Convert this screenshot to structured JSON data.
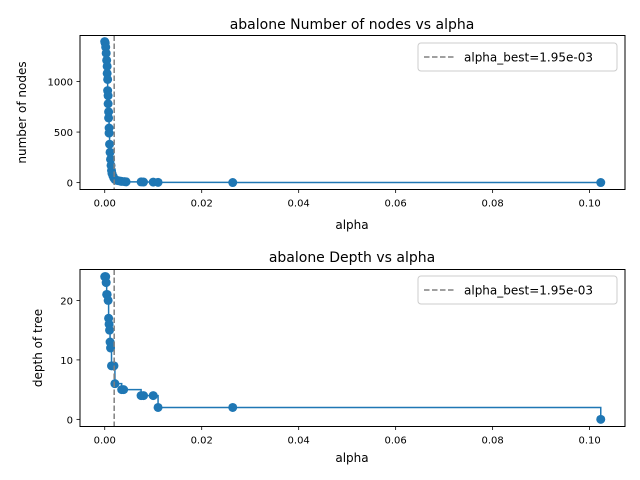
{
  "chart_data": [
    {
      "type": "line",
      "title": "abalone Number of nodes vs alpha",
      "xlabel": "alpha",
      "ylabel": "number of nodes",
      "xlim": [
        -0.0051,
        0.1073
      ],
      "ylim": [
        -68,
        1455
      ],
      "xticks": [
        0.0,
        0.02,
        0.04,
        0.06,
        0.08,
        0.1
      ],
      "xtick_labels": [
        "0.00",
        "0.02",
        "0.04",
        "0.06",
        "0.08",
        "0.10"
      ],
      "yticks": [
        0,
        500,
        1000
      ],
      "ytick_labels": [
        "0",
        "500",
        "1000"
      ],
      "drawstyle": "steps-post",
      "marker": "circle",
      "series": [
        {
          "color": "#1f77b4",
          "x": [
            0.0,
            0.0001,
            0.0002,
            0.0003,
            0.0004,
            0.0005,
            0.0005,
            0.0006,
            0.0006,
            0.0007,
            0.0007,
            0.0008,
            0.0008,
            0.0009,
            0.0009,
            0.001,
            0.0011,
            0.0012,
            0.0013,
            0.0014,
            0.0015,
            0.0017,
            0.0019,
            0.0021,
            0.0023,
            0.0027,
            0.0032,
            0.0035,
            0.0041,
            0.0044,
            0.0075,
            0.008,
            0.01,
            0.011,
            0.0264,
            0.1023
          ],
          "y": [
            1395,
            1380,
            1340,
            1280,
            1210,
            1150,
            1080,
            1020,
            910,
            860,
            780,
            700,
            640,
            540,
            490,
            380,
            300,
            230,
            170,
            120,
            90,
            65,
            45,
            32,
            25,
            20,
            15,
            12,
            10,
            8,
            7,
            6,
            5,
            3,
            1,
            1
          ]
        }
      ],
      "vline": {
        "x": 0.00195,
        "label": "alpha_best=1.95e-03",
        "color": "#808080",
        "style": "dashed"
      },
      "legend": {
        "placement": "top-right",
        "entries": [
          "alpha_best=1.95e-03"
        ]
      },
      "grid": false
    },
    {
      "type": "line",
      "title": "abalone Depth vs alpha",
      "xlabel": "alpha",
      "ylabel": "depth of tree",
      "xlim": [
        -0.0051,
        0.1073
      ],
      "ylim": [
        -1.2,
        25.2
      ],
      "xticks": [
        0.0,
        0.02,
        0.04,
        0.06,
        0.08,
        0.1
      ],
      "xtick_labels": [
        "0.00",
        "0.02",
        "0.04",
        "0.06",
        "0.08",
        "0.10"
      ],
      "yticks": [
        0,
        10,
        20
      ],
      "ytick_labels": [
        "0",
        "10",
        "20"
      ],
      "drawstyle": "steps-post",
      "marker": "circle",
      "series": [
        {
          "color": "#1f77b4",
          "x": [
            0.0,
            0.0002,
            0.0003,
            0.0004,
            0.0005,
            0.0007,
            0.0008,
            0.0009,
            0.001,
            0.0011,
            0.0012,
            0.0014,
            0.0019,
            0.0021,
            0.0035,
            0.0039,
            0.0075,
            0.008,
            0.01,
            0.011,
            0.0264,
            0.1023
          ],
          "y": [
            24,
            24,
            23,
            21,
            21,
            20,
            17,
            16,
            15,
            13,
            12,
            9,
            9,
            6,
            5,
            5,
            4,
            4,
            4,
            2,
            2,
            0
          ]
        }
      ],
      "vline": {
        "x": 0.00195,
        "label": "alpha_best=1.95e-03",
        "color": "#808080",
        "style": "dashed"
      },
      "legend": {
        "placement": "top-right",
        "entries": [
          "alpha_best=1.95e-03"
        ]
      },
      "grid": false
    }
  ]
}
